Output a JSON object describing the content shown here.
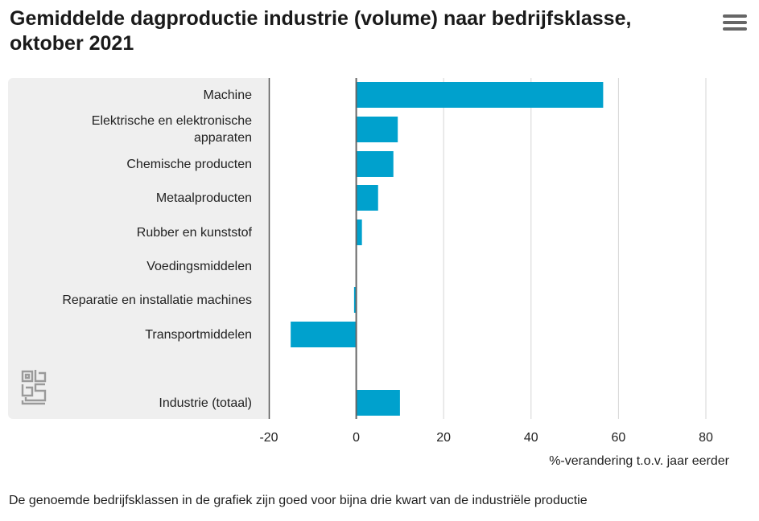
{
  "header": {
    "title": "Gemiddelde dagproductie industrie (volume) naar bedrijfsklasse, oktober 2021",
    "menu_icon": "hamburger-menu-icon"
  },
  "logo": {
    "icon": "cbs-logo-icon"
  },
  "chart_data": {
    "type": "bar",
    "orientation": "horizontal",
    "title": "Gemiddelde dagproductie industrie (volume) naar bedrijfsklasse, oktober 2021",
    "categories": [
      "Machine",
      "Elektrische en elektronische apparaten",
      "Chemische producten",
      "Metaalproducten",
      "Rubber en kunststof",
      "Voedingsmiddelen",
      "Reparatie en installatie machines",
      "Transportmiddelen",
      "",
      "Industrie (totaal)"
    ],
    "values": [
      56.5,
      9.5,
      8.5,
      5.0,
      1.3,
      0.0,
      -0.5,
      -15.0,
      null,
      10.0
    ],
    "xlabel": "%-verandering t.o.v. jaar eerder",
    "ylabel": "",
    "xlim": [
      -20,
      80
    ],
    "ticks": [
      -20,
      0,
      20,
      40,
      60,
      80
    ],
    "tick_labels": [
      "-20",
      "0",
      "20",
      "40",
      "60",
      "80"
    ],
    "grid": true,
    "bar_color": "#00a1cd"
  },
  "footnote": "De genoemde bedrijfsklassen in de grafiek zijn goed voor bijna drie kwart van de industriële productie"
}
